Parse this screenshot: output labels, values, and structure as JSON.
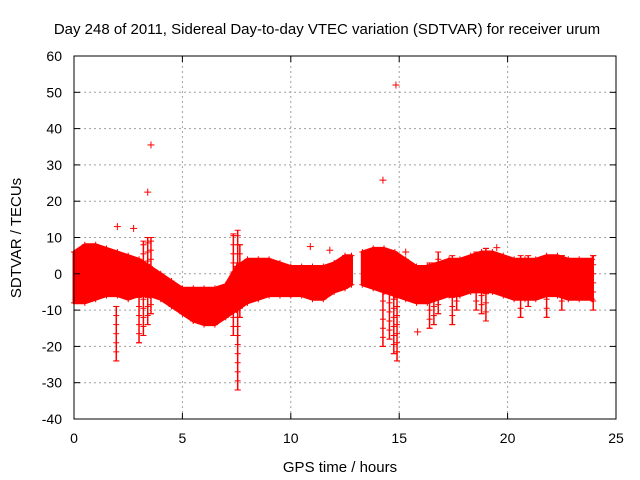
{
  "chart_data": {
    "type": "scatter",
    "title": "Day 248 of 2011, Sidereal Day-to-day VTEC variation (SDTVAR) for receiver urum",
    "xlabel": "GPS time / hours",
    "ylabel": "SDTVAR / TECUs",
    "xlim": [
      0,
      25
    ],
    "ylim": [
      -40,
      60
    ],
    "xticks": [
      0,
      5,
      10,
      15,
      20,
      25
    ],
    "yticks": [
      -40,
      -30,
      -20,
      -10,
      0,
      10,
      20,
      30,
      40,
      50,
      60
    ],
    "grid": true,
    "marker": "+",
    "color": "#ff0000",
    "series": [
      {
        "name": "SDTVAR",
        "band": [
          {
            "x": 0.0,
            "low": -8,
            "high": 6
          },
          {
            "x": 0.5,
            "low": -8,
            "high": 8
          },
          {
            "x": 1.0,
            "low": -7,
            "high": 8
          },
          {
            "x": 1.5,
            "low": -6,
            "high": 7
          },
          {
            "x": 2.0,
            "low": -6,
            "high": 6
          },
          {
            "x": 2.5,
            "low": -7,
            "high": 5
          },
          {
            "x": 3.0,
            "low": -6,
            "high": 4
          },
          {
            "x": 3.5,
            "low": -6,
            "high": 2
          },
          {
            "x": 4.0,
            "low": -7,
            "high": 0
          },
          {
            "x": 4.5,
            "low": -9,
            "high": -2
          },
          {
            "x": 5.0,
            "low": -11,
            "high": -4
          },
          {
            "x": 5.5,
            "low": -13,
            "high": -4
          },
          {
            "x": 6.0,
            "low": -14,
            "high": -4
          },
          {
            "x": 6.5,
            "low": -14,
            "high": -4
          },
          {
            "x": 7.0,
            "low": -12,
            "high": -3
          },
          {
            "x": 7.5,
            "low": -10,
            "high": 2
          },
          {
            "x": 8.0,
            "low": -8,
            "high": 4
          },
          {
            "x": 8.5,
            "low": -7,
            "high": 4
          },
          {
            "x": 9.0,
            "low": -6,
            "high": 4
          },
          {
            "x": 9.5,
            "low": -6,
            "high": 3
          },
          {
            "x": 10.0,
            "low": -6,
            "high": 2
          },
          {
            "x": 10.5,
            "low": -6,
            "high": 2
          },
          {
            "x": 11.0,
            "low": -7,
            "high": 2
          },
          {
            "x": 11.5,
            "low": -7,
            "high": 2
          },
          {
            "x": 12.0,
            "low": -5,
            "high": 3
          },
          {
            "x": 12.5,
            "low": -4,
            "high": 5
          },
          {
            "x": 12.8,
            "low": -3,
            "high": 5
          },
          {
            "x": 13.3,
            "low": -3,
            "high": 6
          },
          {
            "x": 13.8,
            "low": -4,
            "high": 7
          },
          {
            "x": 14.3,
            "low": -5,
            "high": 7
          },
          {
            "x": 14.8,
            "low": -6,
            "high": 6
          },
          {
            "x": 15.3,
            "low": -7,
            "high": 4
          },
          {
            "x": 15.8,
            "low": -8,
            "high": 2
          },
          {
            "x": 16.3,
            "low": -8,
            "high": 2
          },
          {
            "x": 16.8,
            "low": -7,
            "high": 3
          },
          {
            "x": 17.3,
            "low": -6,
            "high": 4
          },
          {
            "x": 17.8,
            "low": -6,
            "high": 4
          },
          {
            "x": 18.3,
            "low": -5,
            "high": 5
          },
          {
            "x": 18.8,
            "low": -5,
            "high": 6
          },
          {
            "x": 19.3,
            "low": -5,
            "high": 6
          },
          {
            "x": 19.8,
            "low": -6,
            "high": 5
          },
          {
            "x": 20.3,
            "low": -7,
            "high": 4
          },
          {
            "x": 20.8,
            "low": -7,
            "high": 4
          },
          {
            "x": 21.3,
            "low": -7,
            "high": 4
          },
          {
            "x": 21.8,
            "low": -6,
            "high": 5
          },
          {
            "x": 22.3,
            "low": -6,
            "high": 5
          },
          {
            "x": 22.8,
            "low": -7,
            "high": 4
          },
          {
            "x": 23.3,
            "low": -7,
            "high": 4
          },
          {
            "x": 23.9,
            "low": -7,
            "high": 4
          }
        ],
        "spikes": [
          {
            "x": 1.95,
            "low": -24,
            "high": -9
          },
          {
            "x": 3.0,
            "low": -19,
            "high": 0
          },
          {
            "x": 3.2,
            "low": -17,
            "high": 9
          },
          {
            "x": 3.4,
            "low": -14,
            "high": 10
          },
          {
            "x": 3.55,
            "low": -11,
            "high": 10
          },
          {
            "x": 7.35,
            "low": -17,
            "high": 11
          },
          {
            "x": 7.55,
            "low": -32,
            "high": 12
          },
          {
            "x": 7.65,
            "low": -12,
            "high": 8
          },
          {
            "x": 14.25,
            "low": -20,
            "high": 5
          },
          {
            "x": 14.55,
            "low": -18,
            "high": 5
          },
          {
            "x": 14.75,
            "low": -22,
            "high": 4
          },
          {
            "x": 14.9,
            "low": -24,
            "high": 2
          },
          {
            "x": 16.4,
            "low": -15,
            "high": 3
          },
          {
            "x": 16.6,
            "low": -14,
            "high": 3
          },
          {
            "x": 16.8,
            "low": -11,
            "high": 6
          },
          {
            "x": 17.45,
            "low": -14,
            "high": 5
          },
          {
            "x": 17.65,
            "low": -10,
            "high": 4
          },
          {
            "x": 18.55,
            "low": -10,
            "high": 6
          },
          {
            "x": 18.8,
            "low": -11,
            "high": 6
          },
          {
            "x": 19.0,
            "low": -13,
            "high": 7
          },
          {
            "x": 20.6,
            "low": -12,
            "high": 5
          },
          {
            "x": 20.95,
            "low": -9,
            "high": 5
          },
          {
            "x": 21.8,
            "low": -12,
            "high": 5
          },
          {
            "x": 22.5,
            "low": -10,
            "high": 5
          },
          {
            "x": 23.95,
            "low": -10,
            "high": 5
          }
        ],
        "outliers": [
          {
            "x": 2.0,
            "y": 13
          },
          {
            "x": 2.75,
            "y": 12.5
          },
          {
            "x": 3.4,
            "y": 22.5
          },
          {
            "x": 3.55,
            "y": 35.5
          },
          {
            "x": 10.9,
            "y": 7.5
          },
          {
            "x": 11.8,
            "y": 6.5
          },
          {
            "x": 14.25,
            "y": 25.8
          },
          {
            "x": 14.85,
            "y": 52
          },
          {
            "x": 15.3,
            "y": 6
          },
          {
            "x": 15.85,
            "y": -16
          },
          {
            "x": 19.5,
            "y": 7.2
          }
        ]
      }
    ]
  }
}
